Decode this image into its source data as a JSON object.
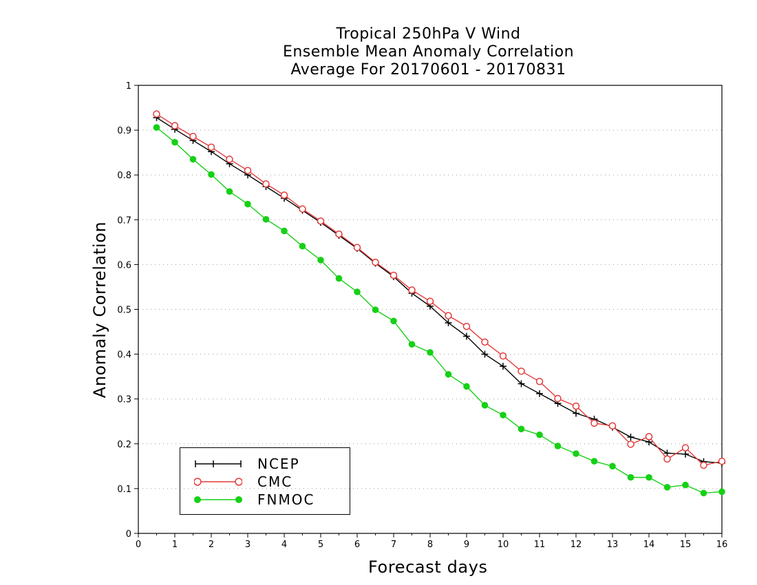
{
  "chart_data": {
    "type": "line",
    "title": [
      "Tropical 250hPa V Wind",
      "Ensemble Mean Anomaly Correlation",
      "Average For 20170601 - 20170831"
    ],
    "xlabel": "Forecast days",
    "ylabel": "Anomaly Correlation",
    "xlim": [
      0,
      16
    ],
    "ylim": [
      0,
      1
    ],
    "xticks": [
      "0",
      "1",
      "2",
      "3",
      "4",
      "5",
      "6",
      "7",
      "8",
      "9",
      "10",
      "11",
      "12",
      "13",
      "14",
      "15",
      "16"
    ],
    "yticks": [
      "0",
      "0.1",
      "0.2",
      "0.3",
      "0.4",
      "0.5",
      "0.6",
      "0.7",
      "0.8",
      "0.9",
      "1"
    ],
    "grid": "horizontal dotted",
    "legend_position": "bottom-left",
    "x": [
      0.5,
      1,
      1.5,
      2,
      2.5,
      3,
      3.5,
      4,
      4.5,
      5,
      5.5,
      6,
      6.5,
      7,
      7.5,
      8,
      8.5,
      9,
      9.5,
      10,
      10.5,
      11,
      11.5,
      12,
      12.5,
      13,
      13.5,
      14,
      14.5,
      15,
      15.5,
      16
    ],
    "series": [
      {
        "name": "NCEP",
        "color": "#000000",
        "marker": "plus",
        "values": [
          0.928,
          0.902,
          0.877,
          0.852,
          0.825,
          0.8,
          0.774,
          0.748,
          0.721,
          0.694,
          0.665,
          0.636,
          0.603,
          0.573,
          0.536,
          0.507,
          0.47,
          0.44,
          0.4,
          0.373,
          0.334,
          0.312,
          0.29,
          0.268,
          0.255,
          0.237,
          0.215,
          0.204,
          0.179,
          0.177,
          0.16,
          0.157
        ]
      },
      {
        "name": "CMC",
        "color": "#e33b3b",
        "marker": "open-circle",
        "values": [
          0.936,
          0.91,
          0.886,
          0.862,
          0.835,
          0.81,
          0.78,
          0.755,
          0.724,
          0.697,
          0.668,
          0.638,
          0.605,
          0.576,
          0.543,
          0.518,
          0.486,
          0.462,
          0.427,
          0.396,
          0.362,
          0.339,
          0.301,
          0.284,
          0.246,
          0.24,
          0.199,
          0.216,
          0.166,
          0.191,
          0.152,
          0.161
        ]
      },
      {
        "name": "FNMOC",
        "color": "#16d016",
        "marker": "filled-circle",
        "values": [
          0.906,
          0.873,
          0.835,
          0.801,
          0.763,
          0.735,
          0.701,
          0.675,
          0.641,
          0.61,
          0.569,
          0.539,
          0.499,
          0.474,
          0.422,
          0.404,
          0.355,
          0.328,
          0.286,
          0.264,
          0.233,
          0.22,
          0.195,
          0.178,
          0.161,
          0.15,
          0.125,
          0.125,
          0.103,
          0.108,
          0.09,
          0.093
        ]
      }
    ]
  }
}
